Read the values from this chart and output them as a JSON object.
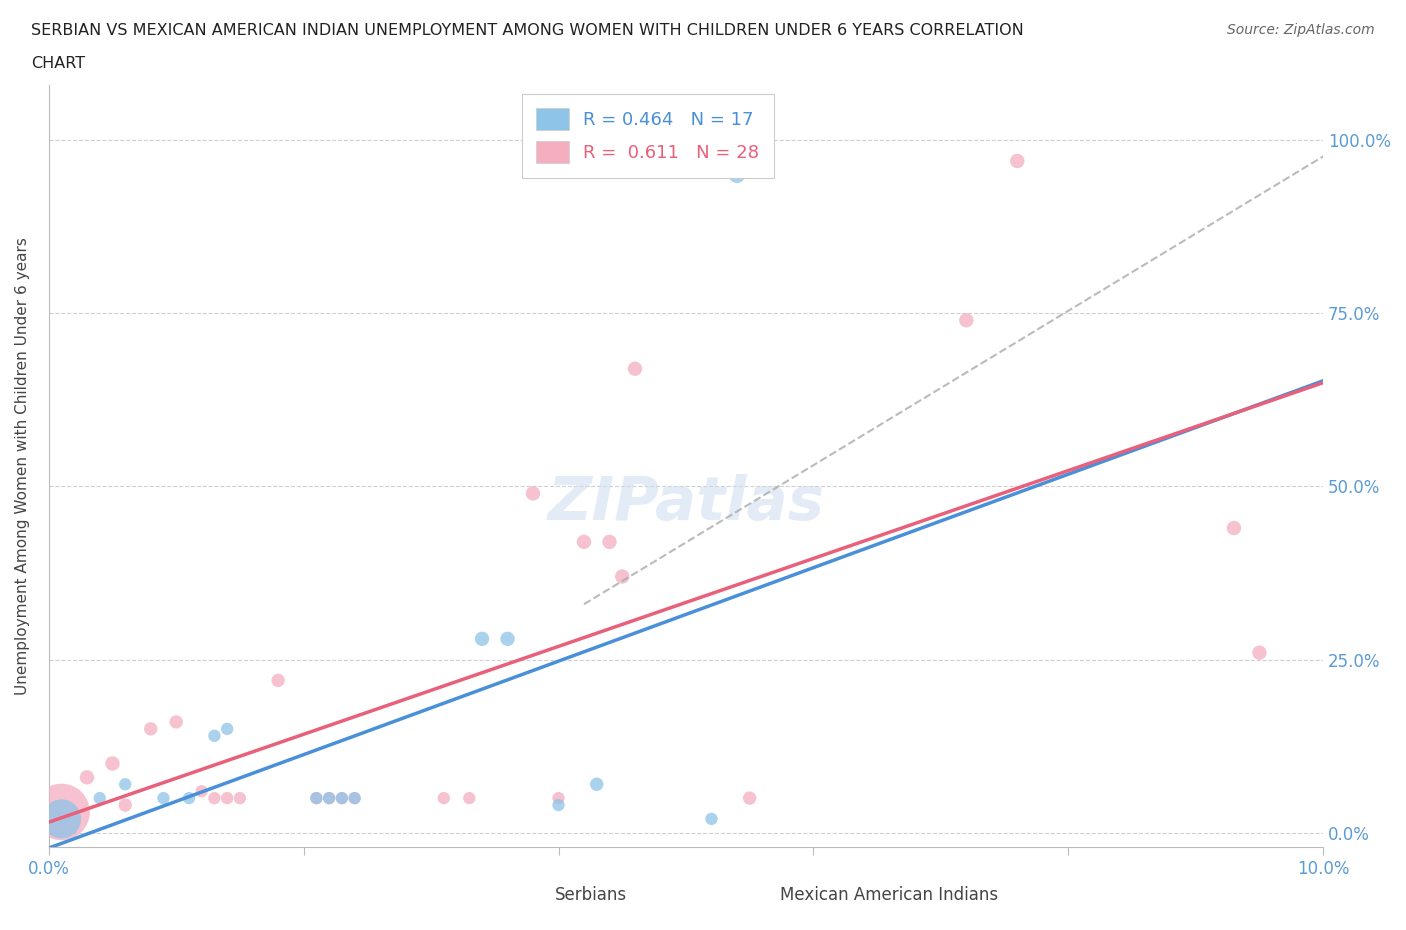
{
  "title_line1": "SERBIAN VS MEXICAN AMERICAN INDIAN UNEMPLOYMENT AMONG WOMEN WITH CHILDREN UNDER 6 YEARS CORRELATION",
  "title_line2": "CHART",
  "source": "Source: ZipAtlas.com",
  "ylabel": "Unemployment Among Women with Children Under 6 years",
  "xlim": [
    0.0,
    0.1
  ],
  "ylim": [
    -0.02,
    1.08
  ],
  "ytick_positions": [
    0.0,
    0.25,
    0.5,
    0.75,
    1.0
  ],
  "ytick_labels": [
    "0.0%",
    "25.0%",
    "50.0%",
    "75.0%",
    "100.0%"
  ],
  "xtick_positions": [
    0.0,
    0.02,
    0.04,
    0.06,
    0.08,
    0.1
  ],
  "xtick_labels": [
    "0.0%",
    "",
    "",
    "",
    "",
    "10.0%"
  ],
  "serbian_R": 0.464,
  "serbian_N": 17,
  "mexican_R": 0.611,
  "mexican_N": 28,
  "serbian_color": "#8ec4e8",
  "mexican_color": "#f5aec0",
  "serbian_line_color": "#4a90d9",
  "mexican_line_color": "#e8607a",
  "legend_label_serbian": "Serbians",
  "legend_label_mexican": "Mexican American Indians",
  "serbian_points": [
    [
      0.001,
      0.02,
      38
    ],
    [
      0.004,
      0.05,
      12
    ],
    [
      0.006,
      0.07,
      12
    ],
    [
      0.009,
      0.05,
      12
    ],
    [
      0.011,
      0.05,
      12
    ],
    [
      0.013,
      0.14,
      12
    ],
    [
      0.014,
      0.15,
      12
    ],
    [
      0.021,
      0.05,
      12
    ],
    [
      0.022,
      0.05,
      12
    ],
    [
      0.023,
      0.05,
      12
    ],
    [
      0.024,
      0.05,
      12
    ],
    [
      0.034,
      0.28,
      14
    ],
    [
      0.036,
      0.28,
      14
    ],
    [
      0.04,
      0.04,
      12
    ],
    [
      0.043,
      0.07,
      13
    ],
    [
      0.052,
      0.02,
      12
    ],
    [
      0.054,
      0.95,
      16
    ]
  ],
  "mexican_points": [
    [
      0.001,
      0.03,
      55
    ],
    [
      0.003,
      0.08,
      14
    ],
    [
      0.005,
      0.1,
      14
    ],
    [
      0.006,
      0.04,
      13
    ],
    [
      0.008,
      0.15,
      13
    ],
    [
      0.01,
      0.16,
      13
    ],
    [
      0.012,
      0.06,
      12
    ],
    [
      0.013,
      0.05,
      12
    ],
    [
      0.014,
      0.05,
      12
    ],
    [
      0.015,
      0.05,
      12
    ],
    [
      0.018,
      0.22,
      13
    ],
    [
      0.021,
      0.05,
      12
    ],
    [
      0.022,
      0.05,
      12
    ],
    [
      0.023,
      0.05,
      12
    ],
    [
      0.024,
      0.05,
      12
    ],
    [
      0.031,
      0.05,
      12
    ],
    [
      0.033,
      0.05,
      12
    ],
    [
      0.038,
      0.49,
      14
    ],
    [
      0.04,
      0.05,
      12
    ],
    [
      0.042,
      0.42,
      14
    ],
    [
      0.044,
      0.42,
      14
    ],
    [
      0.045,
      0.37,
      14
    ],
    [
      0.046,
      0.67,
      14
    ],
    [
      0.055,
      0.05,
      13
    ],
    [
      0.072,
      0.74,
      14
    ],
    [
      0.076,
      0.97,
      14
    ],
    [
      0.093,
      0.44,
      14
    ],
    [
      0.095,
      0.26,
      14
    ]
  ],
  "watermark": "ZIPatlas",
  "background_color": "#ffffff",
  "grid_color": "#d0d0d0",
  "serbian_line": {
    "x0": 0.0,
    "y0": 0.01,
    "x1": 0.1,
    "y1": 0.76
  },
  "mexican_line": {
    "x0": 0.0,
    "y0": 0.06,
    "x1": 0.1,
    "y2": 0.76
  },
  "dash_line": {
    "x0": 0.045,
    "y0": 0.35,
    "x1": 0.1,
    "y1": 1.01
  }
}
